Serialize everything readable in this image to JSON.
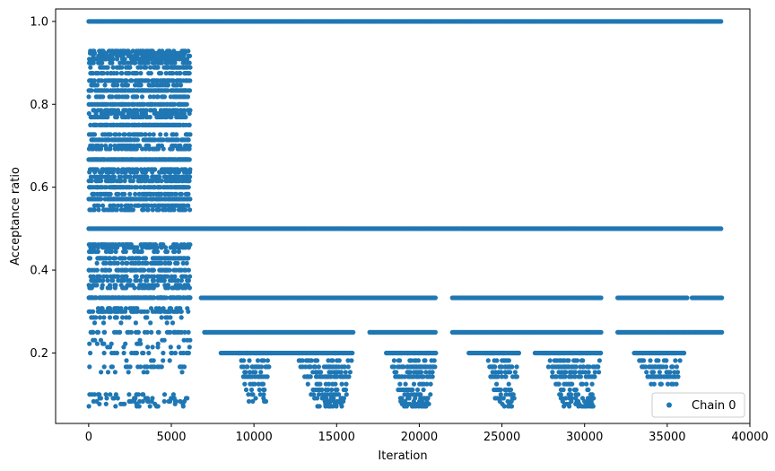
{
  "chart_data": {
    "type": "scatter",
    "xlabel": "Iteration",
    "ylabel": "Acceptance ratio",
    "xlim": [
      -2000,
      40000
    ],
    "ylim": [
      0.03,
      1.03
    ],
    "xticks": [
      0,
      5000,
      10000,
      15000,
      20000,
      25000,
      30000,
      35000,
      40000
    ],
    "xtick_labels": [
      "0",
      "5000",
      "10000",
      "15000",
      "20000",
      "25000",
      "30000",
      "35000",
      "40000"
    ],
    "yticks": [
      0.2,
      0.4,
      0.6,
      0.8,
      1.0
    ],
    "ytick_labels": [
      "0.2",
      "0.4",
      "0.6",
      "0.8",
      "1.0"
    ],
    "grid": false,
    "legend_position": "bottom-right",
    "series": [
      {
        "name": "Chain 0",
        "color": "#1f77b4",
        "marker": "circle",
        "x_range": [
          0,
          38300
        ],
        "levels": [
          {
            "y": 1.0,
            "x_ranges": [
              [
                0,
                38300
              ]
            ]
          },
          {
            "y": 0.5,
            "x_ranges": [
              [
                0,
                38300
              ]
            ]
          },
          {
            "y": 0.333,
            "x_ranges": [
              [
                6800,
                21000
              ],
              [
                22000,
                31000
              ],
              [
                32000,
                36200
              ],
              [
                36500,
                38300
              ]
            ]
          },
          {
            "y": 0.25,
            "x_ranges": [
              [
                7000,
                16000
              ],
              [
                17000,
                21000
              ],
              [
                22000,
                31000
              ],
              [
                32000,
                38300
              ]
            ]
          },
          {
            "y": 0.2,
            "x_ranges": [
              [
                8000,
                16000
              ],
              [
                18000,
                21000
              ],
              [
                23000,
                26000
              ],
              [
                27000,
                31000
              ],
              [
                33000,
                36000
              ]
            ]
          }
        ],
        "bands": [
          {
            "y_range": [
              0.54,
              0.94
            ],
            "x_range": [
              0,
              6100
            ]
          },
          {
            "y_range": [
              0.3,
              0.48
            ],
            "x_range": [
              0,
              6100
            ]
          },
          {
            "y_range": [
              0.15,
              0.3
            ],
            "x_range": [
              0,
              6100
            ]
          },
          {
            "y_range": [
              0.07,
              0.11
            ],
            "x_range": [
              0,
              6100
            ]
          }
        ],
        "clusters": [
          {
            "x_range": [
              9000,
              11000
            ],
            "y_range": [
              0.08,
              0.2
            ]
          },
          {
            "x_range": [
              12500,
              16000
            ],
            "y_range": [
              0.07,
              0.2
            ]
          },
          {
            "x_range": [
              18000,
              21000
            ],
            "y_range": [
              0.06,
              0.2
            ]
          },
          {
            "x_range": [
              24000,
              26000
            ],
            "y_range": [
              0.07,
              0.2
            ]
          },
          {
            "x_range": [
              27500,
              31000
            ],
            "y_range": [
              0.07,
              0.2
            ]
          },
          {
            "x_range": [
              33000,
              36000
            ],
            "y_range": [
              0.12,
              0.2
            ]
          }
        ]
      }
    ]
  }
}
